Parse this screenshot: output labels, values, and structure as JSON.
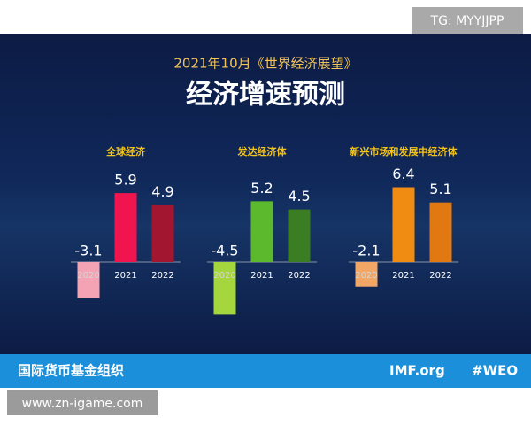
{
  "watermark_top": "TG: MYYJJPP",
  "header": {
    "subtitle": "2021年10月《世界经济展望》",
    "title": "经济增速预测"
  },
  "chart_data": [
    {
      "type": "bar",
      "title": "全球经济",
      "categories": [
        "2020",
        "2021",
        "2022"
      ],
      "values": [
        -3.1,
        5.9,
        4.9
      ],
      "colors": [
        "#f4a3b4",
        "#f0154f",
        "#a3162f"
      ]
    },
    {
      "type": "bar",
      "title": "发达经济体",
      "categories": [
        "2020",
        "2021",
        "2022"
      ],
      "values": [
        -4.5,
        5.2,
        4.5
      ],
      "colors": [
        "#a6d63e",
        "#5cb82c",
        "#3b7d22"
      ]
    },
    {
      "type": "bar",
      "title": "新兴市场和发展中经济体",
      "categories": [
        "2020",
        "2021",
        "2022"
      ],
      "values": [
        -2.1,
        6.4,
        5.1
      ],
      "colors": [
        "#f2a766",
        "#f08c12",
        "#e27812"
      ]
    }
  ],
  "footer": {
    "org": "国际货币基金组织",
    "site": "IMF.org",
    "tag": "#WEO"
  },
  "watermark_bottom": "www.zn-igame.com"
}
